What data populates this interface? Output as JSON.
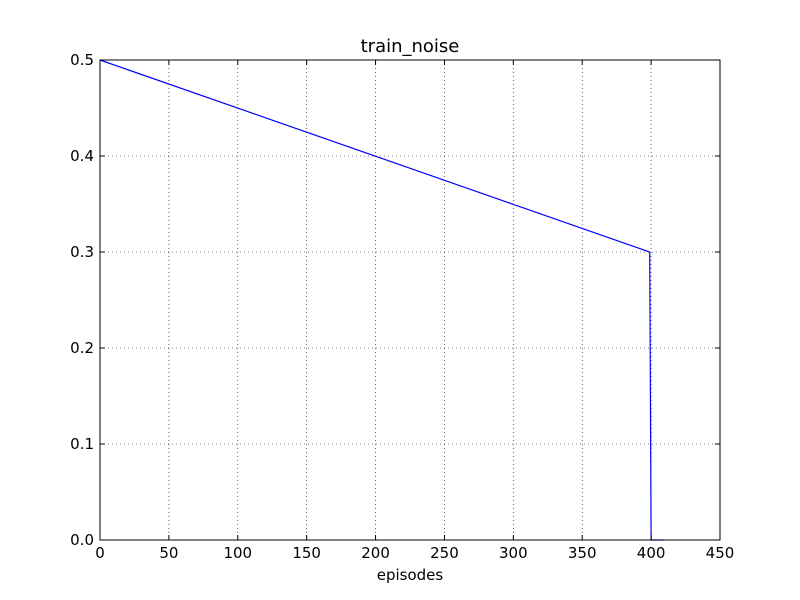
{
  "chart_data": {
    "type": "line",
    "title": "train_noise",
    "xlabel": "episodes",
    "ylabel": "",
    "xlim": [
      0,
      450
    ],
    "ylim": [
      0.0,
      0.5
    ],
    "grid": true,
    "x_ticks": [
      0,
      50,
      100,
      150,
      200,
      250,
      300,
      350,
      400,
      450
    ],
    "x_tick_labels": [
      "0",
      "50",
      "100",
      "150",
      "200",
      "250",
      "300",
      "350",
      "400",
      "450"
    ],
    "y_ticks": [
      0.0,
      0.1,
      0.2,
      0.3,
      0.4,
      0.5
    ],
    "y_tick_labels": [
      "0.0",
      "0.1",
      "0.2",
      "0.3",
      "0.4",
      "0.5"
    ],
    "series": [
      {
        "name": "train_noise",
        "color": "#0000ff",
        "x": [
          0,
          399,
          400,
          409
        ],
        "y": [
          0.5,
          0.3,
          0.0,
          0.0
        ]
      }
    ]
  }
}
